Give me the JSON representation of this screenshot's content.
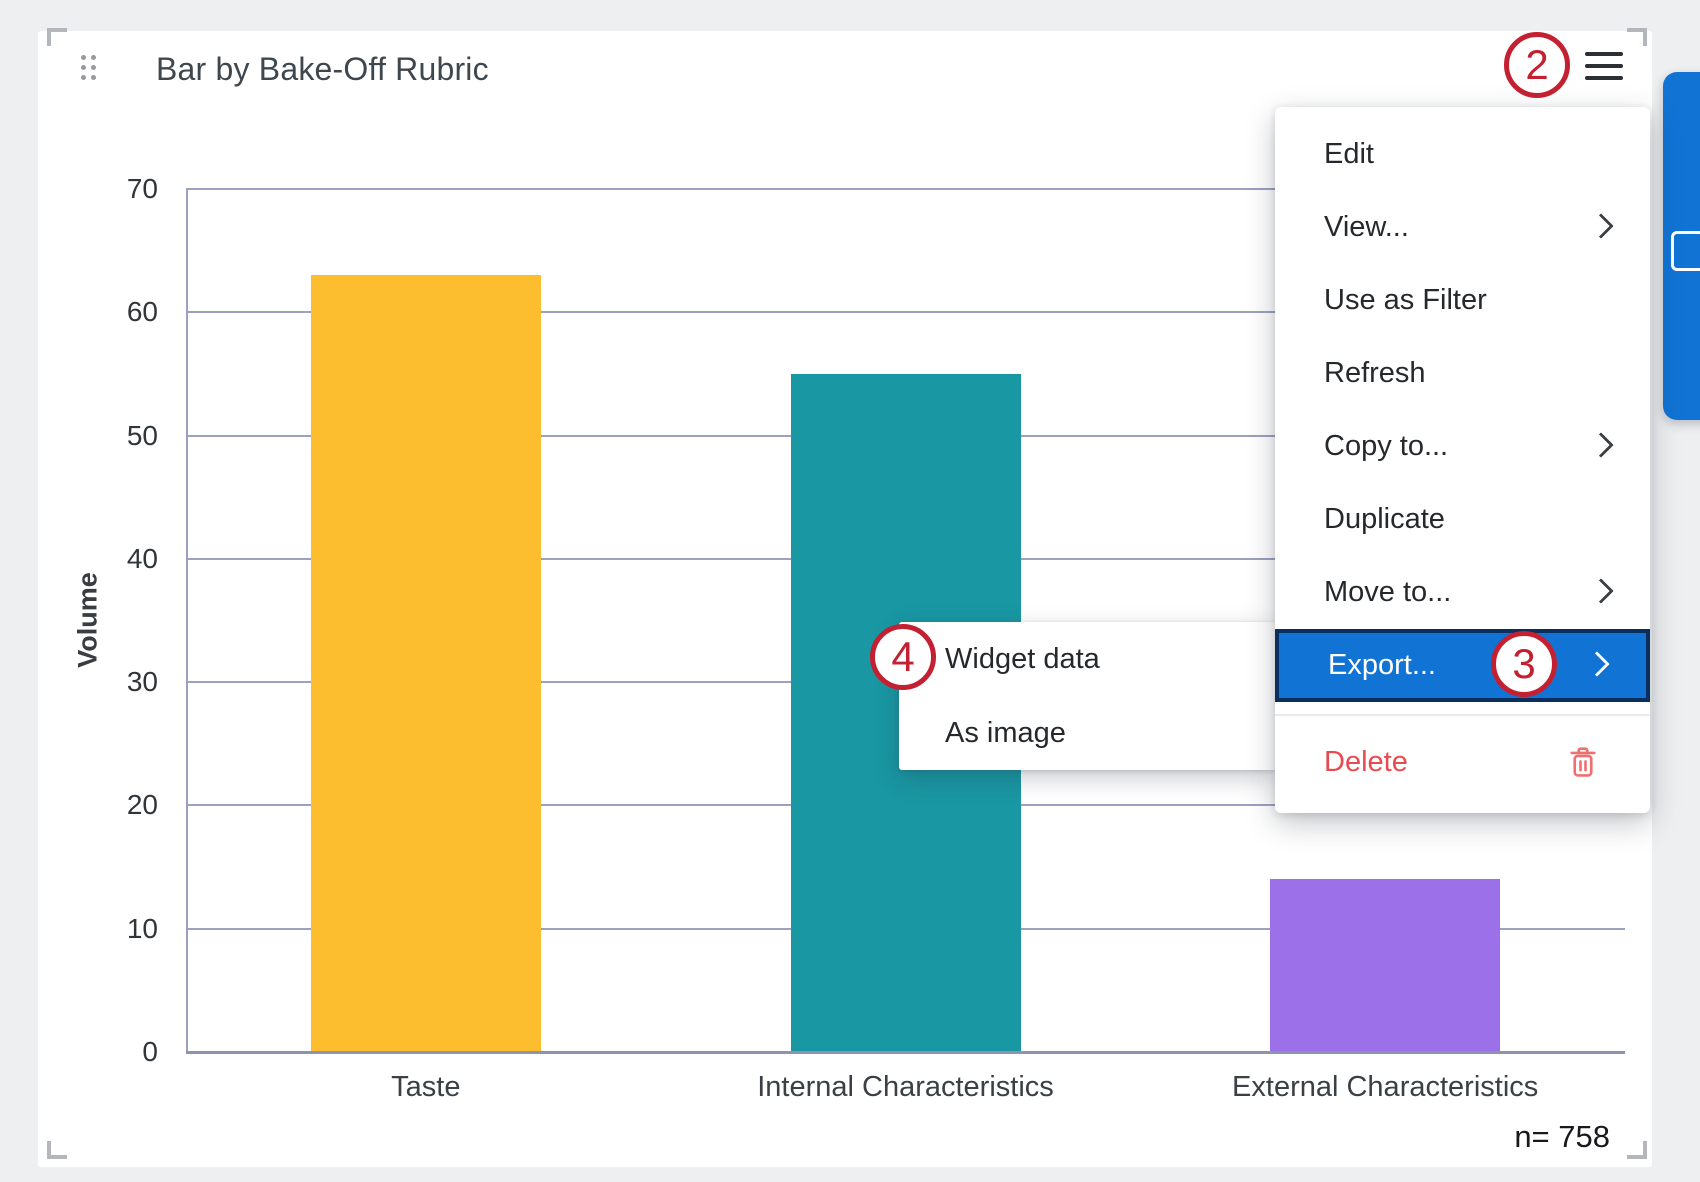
{
  "window": {
    "background": "#edeff0"
  },
  "widget": {
    "title": "Bar by Bake-Off Rubric",
    "sample_size": "n= 758"
  },
  "annotations": {
    "color": "#c32032",
    "steps": {
      "menu_button": "2",
      "export_item": "3",
      "widget_data_item": "4"
    }
  },
  "context_menu": {
    "items": [
      {
        "label": "Edit",
        "has_submenu": false,
        "highlighted": false
      },
      {
        "label": "View...",
        "has_submenu": true,
        "highlighted": false
      },
      {
        "label": "Use as Filter",
        "has_submenu": false,
        "highlighted": false
      },
      {
        "label": "Refresh",
        "has_submenu": false,
        "highlighted": false
      },
      {
        "label": "Copy to...",
        "has_submenu": true,
        "highlighted": false
      },
      {
        "label": "Duplicate",
        "has_submenu": false,
        "highlighted": false
      },
      {
        "label": "Move to...",
        "has_submenu": true,
        "highlighted": false
      },
      {
        "label": "Export...",
        "has_submenu": true,
        "highlighted": true
      }
    ],
    "destructive_item": {
      "label": "Delete"
    },
    "highlight_color": "#1173d4",
    "highlight_border": "#0a2f5e",
    "delete_color": "#e84a50",
    "trash_icon_color": "#f07070"
  },
  "export_submenu": {
    "items": [
      {
        "label": "Widget data"
      },
      {
        "label": "As image"
      }
    ]
  },
  "chart_data": {
    "type": "bar",
    "title": "Bar by Bake-Off Rubric",
    "categories": [
      "Taste",
      "Internal Characteristics",
      "External Characteristics"
    ],
    "values": [
      63,
      55,
      14
    ],
    "bar_colors": [
      "#fcbe2f",
      "#1997a3",
      "#9b70e9"
    ],
    "xlabel": "",
    "ylabel": "Volume",
    "ylim": [
      0,
      70
    ],
    "ytick_step": 10,
    "grid": true,
    "legend": false,
    "axis_color": "#9aa0bf",
    "sample_size": 758
  }
}
